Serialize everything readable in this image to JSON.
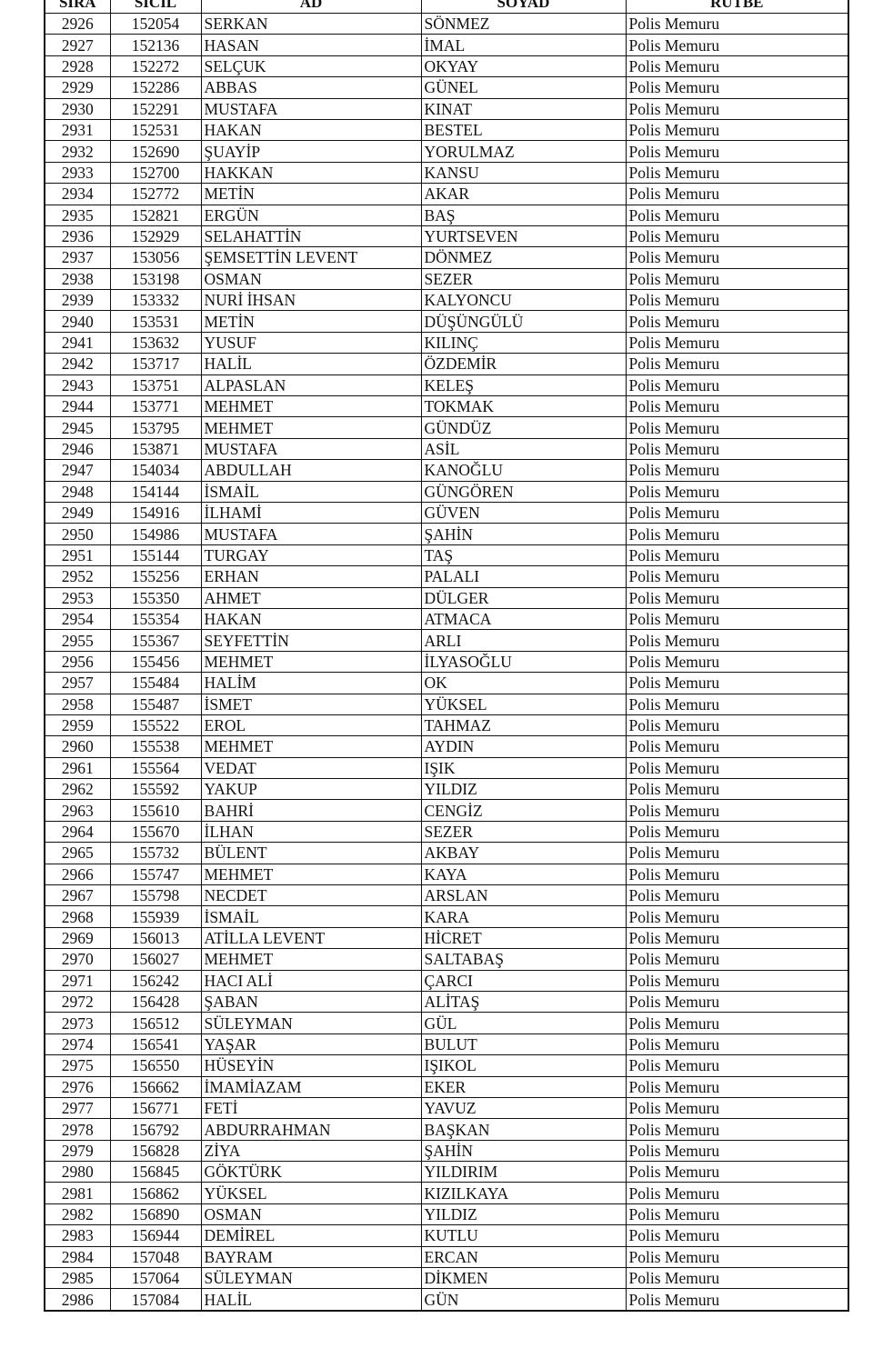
{
  "header": {
    "sira": "SIRA",
    "sicil": "SİCİL",
    "ad": "AD",
    "soyad": "SOYAD",
    "rutbe": "RÜTBE"
  },
  "rows": [
    [
      "2926",
      "152054",
      "SERKAN",
      "SÖNMEZ",
      "Polis Memuru"
    ],
    [
      "2927",
      "152136",
      "HASAN",
      "İMAL",
      "Polis Memuru"
    ],
    [
      "2928",
      "152272",
      "SELÇUK",
      "OKYAY",
      "Polis Memuru"
    ],
    [
      "2929",
      "152286",
      "ABBAS",
      "GÜNEL",
      "Polis Memuru"
    ],
    [
      "2930",
      "152291",
      "MUSTAFA",
      "KINAT",
      "Polis Memuru"
    ],
    [
      "2931",
      "152531",
      "HAKAN",
      "BESTEL",
      "Polis Memuru"
    ],
    [
      "2932",
      "152690",
      "ŞUAYİP",
      "YORULMAZ",
      "Polis Memuru"
    ],
    [
      "2933",
      "152700",
      "HAKKAN",
      "KANSU",
      "Polis Memuru"
    ],
    [
      "2934",
      "152772",
      "METİN",
      "AKAR",
      "Polis Memuru"
    ],
    [
      "2935",
      "152821",
      "ERGÜN",
      "BAŞ",
      "Polis Memuru"
    ],
    [
      "2936",
      "152929",
      "SELAHATTİN",
      "YURTSEVEN",
      "Polis Memuru"
    ],
    [
      "2937",
      "153056",
      "ŞEMSETTİN LEVENT",
      "DÖNMEZ",
      "Polis Memuru"
    ],
    [
      "2938",
      "153198",
      "OSMAN",
      "SEZER",
      "Polis Memuru"
    ],
    [
      "2939",
      "153332",
      "NURİ İHSAN",
      "KALYONCU",
      "Polis Memuru"
    ],
    [
      "2940",
      "153531",
      "METİN",
      "DÜŞÜNGÜLÜ",
      "Polis Memuru"
    ],
    [
      "2941",
      "153632",
      "YUSUF",
      "KILINÇ",
      "Polis Memuru"
    ],
    [
      "2942",
      "153717",
      "HALİL",
      "ÖZDEMİR",
      "Polis Memuru"
    ],
    [
      "2943",
      "153751",
      "ALPASLAN",
      "KELEŞ",
      "Polis Memuru"
    ],
    [
      "2944",
      "153771",
      "MEHMET",
      "TOKMAK",
      "Polis Memuru"
    ],
    [
      "2945",
      "153795",
      "MEHMET",
      "GÜNDÜZ",
      "Polis Memuru"
    ],
    [
      "2946",
      "153871",
      "MUSTAFA",
      "ASİL",
      "Polis Memuru"
    ],
    [
      "2947",
      "154034",
      "ABDULLAH",
      "KANOĞLU",
      "Polis Memuru"
    ],
    [
      "2948",
      "154144",
      "İSMAİL",
      "GÜNGÖREN",
      "Polis Memuru"
    ],
    [
      "2949",
      "154916",
      "İLHAMİ",
      "GÜVEN",
      "Polis Memuru"
    ],
    [
      "2950",
      "154986",
      "MUSTAFA",
      "ŞAHİN",
      "Polis Memuru"
    ],
    [
      "2951",
      "155144",
      "TURGAY",
      "TAŞ",
      "Polis Memuru"
    ],
    [
      "2952",
      "155256",
      "ERHAN",
      "PALALI",
      "Polis Memuru"
    ],
    [
      "2953",
      "155350",
      "AHMET",
      "DÜLGER",
      "Polis Memuru"
    ],
    [
      "2954",
      "155354",
      "HAKAN",
      "ATMACA",
      "Polis Memuru"
    ],
    [
      "2955",
      "155367",
      "SEYFETTİN",
      "ARLI",
      "Polis Memuru"
    ],
    [
      "2956",
      "155456",
      "MEHMET",
      "İLYASOĞLU",
      "Polis Memuru"
    ],
    [
      "2957",
      "155484",
      "HALİM",
      "OK",
      "Polis Memuru"
    ],
    [
      "2958",
      "155487",
      "İSMET",
      "YÜKSEL",
      "Polis Memuru"
    ],
    [
      "2959",
      "155522",
      "EROL",
      "TAHMAZ",
      "Polis Memuru"
    ],
    [
      "2960",
      "155538",
      "MEHMET",
      "AYDIN",
      "Polis Memuru"
    ],
    [
      "2961",
      "155564",
      "VEDAT",
      "IŞIK",
      "Polis Memuru"
    ],
    [
      "2962",
      "155592",
      "YAKUP",
      "YILDIZ",
      "Polis Memuru"
    ],
    [
      "2963",
      "155610",
      "BAHRİ",
      "CENGİZ",
      "Polis Memuru"
    ],
    [
      "2964",
      "155670",
      "İLHAN",
      "SEZER",
      "Polis Memuru"
    ],
    [
      "2965",
      "155732",
      "BÜLENT",
      "AKBAY",
      "Polis Memuru"
    ],
    [
      "2966",
      "155747",
      "MEHMET",
      "KAYA",
      "Polis Memuru"
    ],
    [
      "2967",
      "155798",
      "NECDET",
      "ARSLAN",
      "Polis Memuru"
    ],
    [
      "2968",
      "155939",
      "İSMAİL",
      "KARA",
      "Polis Memuru"
    ],
    [
      "2969",
      "156013",
      "ATİLLA LEVENT",
      "HİCRET",
      "Polis Memuru"
    ],
    [
      "2970",
      "156027",
      "MEHMET",
      "SALTABAŞ",
      "Polis Memuru"
    ],
    [
      "2971",
      "156242",
      "HACI ALİ",
      "ÇARCI",
      "Polis Memuru"
    ],
    [
      "2972",
      "156428",
      "ŞABAN",
      "ALİTAŞ",
      "Polis Memuru"
    ],
    [
      "2973",
      "156512",
      "SÜLEYMAN",
      "GÜL",
      "Polis Memuru"
    ],
    [
      "2974",
      "156541",
      "YAŞAR",
      "BULUT",
      "Polis Memuru"
    ],
    [
      "2975",
      "156550",
      "HÜSEYİN",
      "IŞIKOL",
      "Polis Memuru"
    ],
    [
      "2976",
      "156662",
      "İMAMİAZAM",
      "EKER",
      "Polis Memuru"
    ],
    [
      "2977",
      "156771",
      "FETİ",
      "YAVUZ",
      "Polis Memuru"
    ],
    [
      "2978",
      "156792",
      "ABDURRAHMAN",
      "BAŞKAN",
      "Polis Memuru"
    ],
    [
      "2979",
      "156828",
      "ZİYA",
      "ŞAHİN",
      "Polis Memuru"
    ],
    [
      "2980",
      "156845",
      "GÖKTÜRK",
      "YILDIRIM",
      "Polis Memuru"
    ],
    [
      "2981",
      "156862",
      "YÜKSEL",
      "KIZILKAYA",
      "Polis Memuru"
    ],
    [
      "2982",
      "156890",
      "OSMAN",
      "YILDIZ",
      "Polis Memuru"
    ],
    [
      "2983",
      "156944",
      "DEMİREL",
      "KUTLU",
      "Polis Memuru"
    ],
    [
      "2984",
      "157048",
      "BAYRAM",
      "ERCAN",
      "Polis Memuru"
    ],
    [
      "2985",
      "157064",
      "SÜLEYMAN",
      "DİKMEN",
      "Polis Memuru"
    ],
    [
      "2986",
      "157084",
      "HALİL",
      "GÜN",
      "Polis Memuru"
    ]
  ]
}
